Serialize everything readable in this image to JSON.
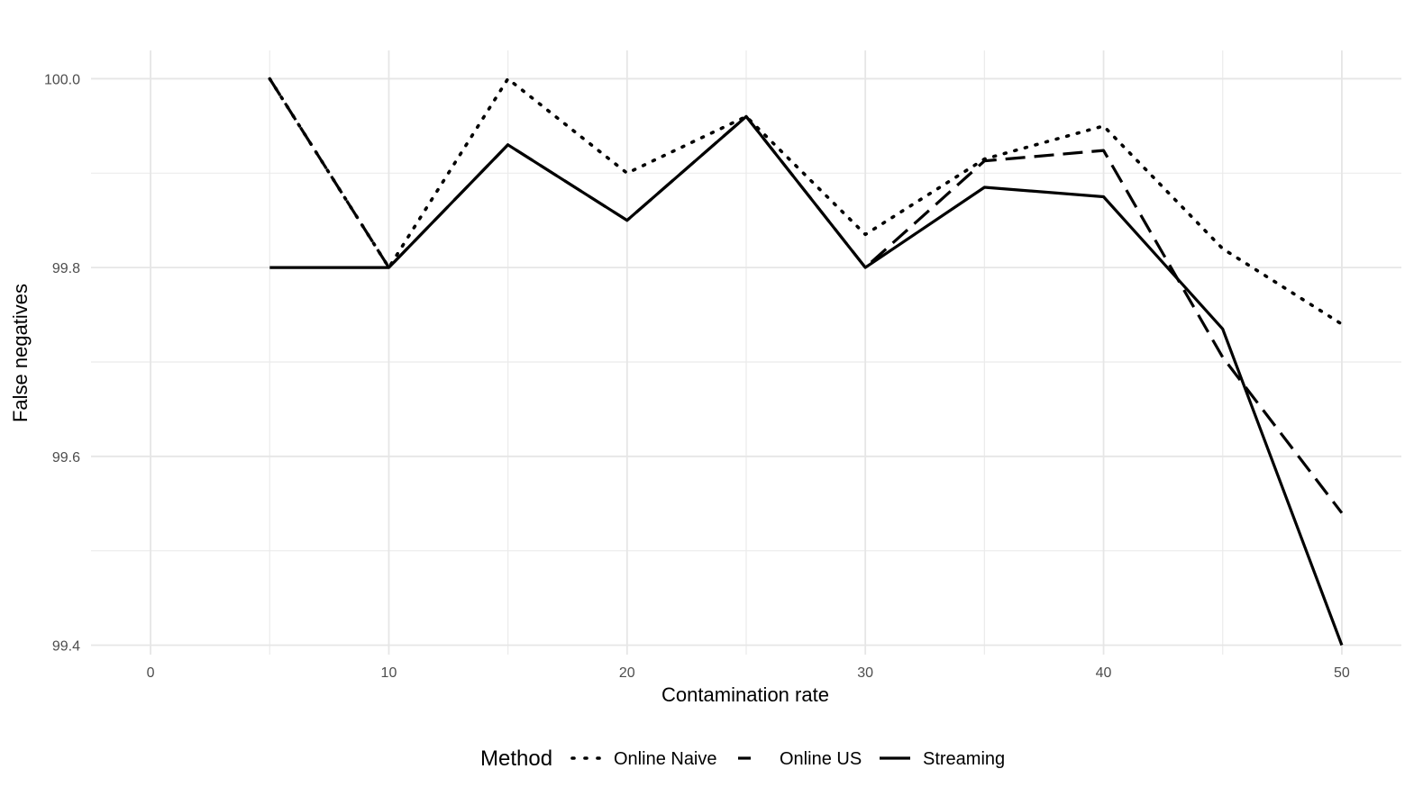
{
  "chart_data": {
    "type": "line",
    "title": "",
    "xlabel": "Contamination rate",
    "ylabel": "False negatives",
    "xlim": [
      -2.5,
      52.5
    ],
    "ylim": [
      99.39,
      100.03
    ],
    "x_ticks": [
      0,
      10,
      20,
      30,
      40,
      50
    ],
    "x_tick_labels": [
      "0",
      "10",
      "20",
      "30",
      "40",
      "50"
    ],
    "x_minor_ticks": [
      5,
      15,
      25,
      35,
      45
    ],
    "y_ticks": [
      99.4,
      99.6,
      99.8,
      100.0
    ],
    "y_tick_labels": [
      "99.4",
      "99.6",
      "99.8",
      "100.0"
    ],
    "y_minor_ticks": [
      99.5,
      99.7,
      99.9
    ],
    "grid": true,
    "legend_position": "bottom",
    "legend_title": "Method",
    "x": [
      5,
      10,
      15,
      20,
      25,
      30,
      35,
      40,
      45,
      50
    ],
    "series": [
      {
        "name": "Online Naive",
        "dash": "dotted",
        "color": "#000000",
        "values": [
          100.0,
          99.8,
          100.0,
          99.9,
          99.96,
          99.835,
          99.915,
          99.95,
          99.82,
          99.74
        ]
      },
      {
        "name": "Online US",
        "dash": "dashed",
        "color": "#000000",
        "values": [
          100.0,
          99.8,
          99.93,
          99.85,
          99.96,
          99.8,
          99.913,
          99.924,
          99.705,
          99.54
        ]
      },
      {
        "name": "Streaming",
        "dash": "solid",
        "color": "#000000",
        "values": [
          99.8,
          99.8,
          99.93,
          99.85,
          99.96,
          99.8,
          99.885,
          99.875,
          99.735,
          99.4
        ]
      }
    ]
  }
}
